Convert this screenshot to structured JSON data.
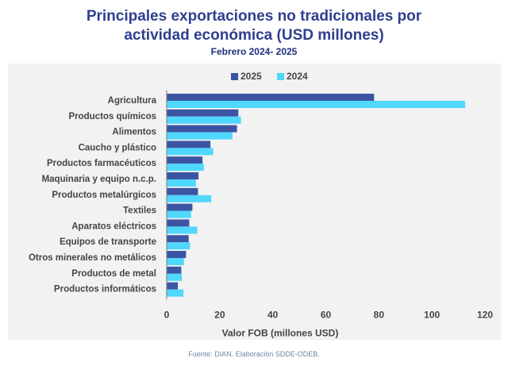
{
  "title_line1": "Principales exportaciones no tradicionales por",
  "title_line2": "actividad económica (USD millones)",
  "subtitle": "Febrero 2024- 2025",
  "source": "Fuente: DIAN. Elaboración SDDE-ODEB.",
  "colors": {
    "s2025": "#3c55a3",
    "s2024": "#4fd8fc",
    "text": "#444444",
    "title": "#2e3f8f"
  },
  "chart_data": {
    "type": "bar",
    "orientation": "horizontal",
    "categories": [
      "Agricultura",
      "Productos químicos",
      "Alimentos",
      "Caucho y plástico",
      "Productos farmacéuticos",
      "Maquinaria y equipo n.c.p.",
      "Productos metalúrgicos",
      "Textiles",
      "Aparatos eléctricos",
      "Equipos de transporte",
      "Otros minerales no metálicos",
      "Productos de metal",
      "Productos informáticos"
    ],
    "series": [
      {
        "name": "2025",
        "values": [
          78.2,
          27.0,
          26.5,
          16.5,
          13.5,
          12.0,
          11.8,
          9.7,
          8.5,
          8.3,
          7.3,
          5.5,
          4.2
        ]
      },
      {
        "name": "2024",
        "values": [
          112.5,
          28.0,
          24.8,
          17.5,
          14.0,
          11.0,
          16.8,
          9.2,
          11.5,
          8.8,
          6.5,
          5.7,
          6.3
        ]
      }
    ],
    "xlabel": "Valor FOB (millones USD)",
    "xlim": [
      0,
      120
    ],
    "xticks": [
      0,
      20,
      40,
      60,
      80,
      100,
      120
    ],
    "grid": false,
    "legend": "top-center"
  }
}
